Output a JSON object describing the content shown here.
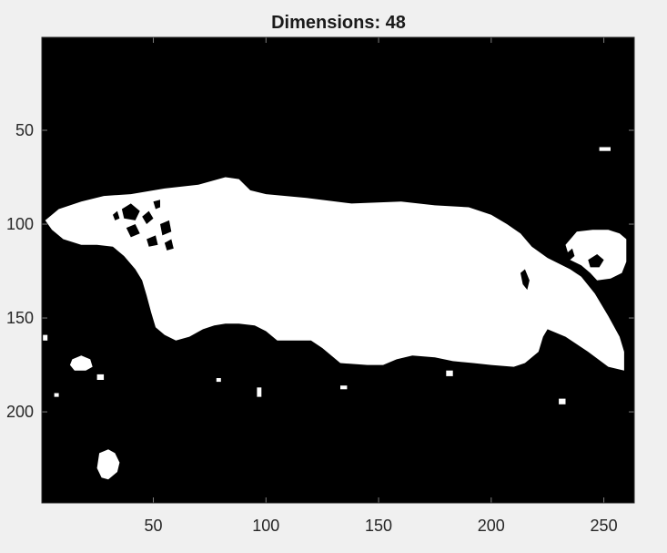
{
  "chart_data": {
    "type": "heatmap",
    "title": "Dimensions: 48",
    "xlabel": "",
    "ylabel": "",
    "xlim": [
      0.5,
      263.5
    ],
    "ylim": [
      0.5,
      248.5
    ],
    "y_reversed": true,
    "x_ticks": [
      50,
      100,
      150,
      200,
      250
    ],
    "y_ticks": [
      50,
      100,
      150,
      200
    ],
    "x_tick_labels": [
      "50",
      "100",
      "150",
      "200",
      "250"
    ],
    "y_tick_labels": [
      "50",
      "100",
      "150",
      "200"
    ],
    "grid": false,
    "legend": "none",
    "colormap": "binary",
    "background_value": 0,
    "foreground_value": 1,
    "colors": {
      "background": "#000000",
      "foreground": "#ffffff",
      "figure": "#f0f0f0",
      "text": "#262626"
    },
    "white_regions": [
      {
        "name": "main-body",
        "points": [
          [
            8,
            92
          ],
          [
            18,
            88
          ],
          [
            28,
            85
          ],
          [
            40,
            84
          ],
          [
            55,
            81
          ],
          [
            70,
            79
          ],
          [
            82,
            75
          ],
          [
            88,
            76
          ],
          [
            93,
            82
          ],
          [
            100,
            84
          ],
          [
            118,
            86
          ],
          [
            138,
            89
          ],
          [
            160,
            88
          ],
          [
            175,
            90
          ],
          [
            190,
            91
          ],
          [
            200,
            95
          ],
          [
            207,
            100
          ],
          [
            213,
            105
          ],
          [
            218,
            112
          ],
          [
            225,
            118
          ],
          [
            235,
            124
          ],
          [
            240,
            128
          ],
          [
            246,
            137
          ],
          [
            252,
            149
          ],
          [
            257,
            160
          ],
          [
            259,
            168
          ],
          [
            259,
            178
          ],
          [
            252,
            176
          ],
          [
            243,
            168
          ],
          [
            233,
            160
          ],
          [
            225,
            156
          ],
          [
            223,
            160
          ],
          [
            221,
            168
          ],
          [
            215,
            174
          ],
          [
            210,
            176
          ],
          [
            200,
            175
          ],
          [
            192,
            174
          ],
          [
            183,
            173
          ],
          [
            175,
            171
          ],
          [
            165,
            170
          ],
          [
            158,
            172
          ],
          [
            152,
            175
          ],
          [
            145,
            175
          ],
          [
            133,
            174
          ],
          [
            125,
            166
          ],
          [
            120,
            162
          ],
          [
            113,
            162
          ],
          [
            105,
            162
          ],
          [
            100,
            157
          ],
          [
            95,
            154
          ],
          [
            88,
            153
          ],
          [
            82,
            153
          ],
          [
            77,
            154
          ],
          [
            72,
            156
          ],
          [
            66,
            160
          ],
          [
            60,
            162
          ],
          [
            55,
            159
          ],
          [
            51,
            155
          ],
          [
            49,
            147
          ],
          [
            47,
            138
          ],
          [
            45,
            130
          ],
          [
            42,
            124
          ],
          [
            37,
            117
          ],
          [
            32,
            112
          ],
          [
            25,
            111
          ],
          [
            18,
            111
          ],
          [
            10,
            108
          ],
          [
            5,
            103
          ],
          [
            2,
            98
          ]
        ]
      },
      {
        "name": "tail-blob",
        "points": [
          [
            233,
            111
          ],
          [
            238,
            104
          ],
          [
            245,
            103
          ],
          [
            252,
            103
          ],
          [
            257,
            105
          ],
          [
            260,
            108
          ],
          [
            260,
            120
          ],
          [
            258,
            126
          ],
          [
            253,
            129
          ],
          [
            247,
            130
          ],
          [
            244,
            126
          ],
          [
            240,
            122
          ],
          [
            235,
            119
          ]
        ]
      },
      {
        "name": "lower-left-blob",
        "points": [
          [
            26,
            222
          ],
          [
            30,
            220
          ],
          [
            33,
            222
          ],
          [
            35,
            227
          ],
          [
            34,
            232
          ],
          [
            30,
            236
          ],
          [
            27,
            235
          ],
          [
            25,
            230
          ]
        ]
      },
      {
        "name": "left-small-blob",
        "points": [
          [
            14,
            172
          ],
          [
            18,
            170
          ],
          [
            22,
            172
          ],
          [
            23,
            176
          ],
          [
            20,
            178
          ],
          [
            15,
            178
          ],
          [
            13,
            175
          ]
        ]
      },
      {
        "name": "top-right-speck",
        "points": [
          [
            248,
            59
          ],
          [
            253,
            59
          ],
          [
            253,
            61
          ],
          [
            248,
            61
          ]
        ]
      },
      {
        "name": "speck-1",
        "points": [
          [
            1,
            159
          ],
          [
            3,
            159
          ],
          [
            3,
            162
          ],
          [
            1,
            162
          ]
        ]
      },
      {
        "name": "speck-2",
        "points": [
          [
            6,
            190
          ],
          [
            8,
            190
          ],
          [
            8,
            192
          ],
          [
            6,
            192
          ]
        ]
      },
      {
        "name": "speck-3",
        "points": [
          [
            25,
            180
          ],
          [
            28,
            180
          ],
          [
            28,
            183
          ],
          [
            25,
            183
          ]
        ]
      },
      {
        "name": "speck-4",
        "points": [
          [
            78,
            182
          ],
          [
            80,
            182
          ],
          [
            80,
            184
          ],
          [
            78,
            184
          ]
        ]
      },
      {
        "name": "speck-5",
        "points": [
          [
            96,
            187
          ],
          [
            98,
            187
          ],
          [
            98,
            192
          ],
          [
            96,
            192
          ]
        ]
      },
      {
        "name": "speck-6",
        "points": [
          [
            133,
            186
          ],
          [
            136,
            186
          ],
          [
            136,
            188
          ],
          [
            133,
            188
          ]
        ]
      },
      {
        "name": "speck-7",
        "points": [
          [
            180,
            178
          ],
          [
            183,
            178
          ],
          [
            183,
            181
          ],
          [
            180,
            181
          ]
        ]
      },
      {
        "name": "speck-8",
        "points": [
          [
            230,
            193
          ],
          [
            233,
            193
          ],
          [
            233,
            196
          ],
          [
            230,
            196
          ]
        ]
      }
    ],
    "black_regions": [
      {
        "name": "head-texture-1",
        "points": [
          [
            36,
            92
          ],
          [
            40,
            89
          ],
          [
            44,
            93
          ],
          [
            42,
            98
          ],
          [
            37,
            97
          ]
        ]
      },
      {
        "name": "head-texture-2",
        "points": [
          [
            45,
            96
          ],
          [
            48,
            93
          ],
          [
            50,
            97
          ],
          [
            47,
            100
          ]
        ]
      },
      {
        "name": "head-texture-3",
        "points": [
          [
            38,
            102
          ],
          [
            42,
            100
          ],
          [
            44,
            105
          ],
          [
            40,
            107
          ]
        ]
      },
      {
        "name": "head-texture-4",
        "points": [
          [
            53,
            100
          ],
          [
            57,
            98
          ],
          [
            58,
            104
          ],
          [
            54,
            106
          ]
        ]
      },
      {
        "name": "head-texture-5",
        "points": [
          [
            47,
            108
          ],
          [
            51,
            106
          ],
          [
            52,
            111
          ],
          [
            48,
            112
          ]
        ]
      },
      {
        "name": "head-texture-6",
        "points": [
          [
            55,
            110
          ],
          [
            58,
            108
          ],
          [
            59,
            113
          ],
          [
            56,
            114
          ]
        ]
      },
      {
        "name": "head-texture-7",
        "points": [
          [
            32,
            95
          ],
          [
            34,
            93
          ],
          [
            35,
            97
          ],
          [
            33,
            98
          ]
        ]
      },
      {
        "name": "head-texture-8",
        "points": [
          [
            50,
            88
          ],
          [
            53,
            87
          ],
          [
            53,
            91
          ],
          [
            51,
            92
          ]
        ]
      },
      {
        "name": "body-spot",
        "points": [
          [
            213,
            126
          ],
          [
            215,
            124
          ],
          [
            217,
            130
          ],
          [
            216,
            135
          ],
          [
            214,
            132
          ]
        ]
      },
      {
        "name": "tail-hole",
        "points": [
          [
            243,
            119
          ],
          [
            247,
            116
          ],
          [
            250,
            119
          ],
          [
            248,
            123
          ],
          [
            244,
            123
          ]
        ]
      },
      {
        "name": "tail-notch",
        "points": [
          [
            233,
            116
          ],
          [
            236,
            113
          ],
          [
            237,
            117
          ],
          [
            235,
            119
          ]
        ]
      }
    ]
  }
}
